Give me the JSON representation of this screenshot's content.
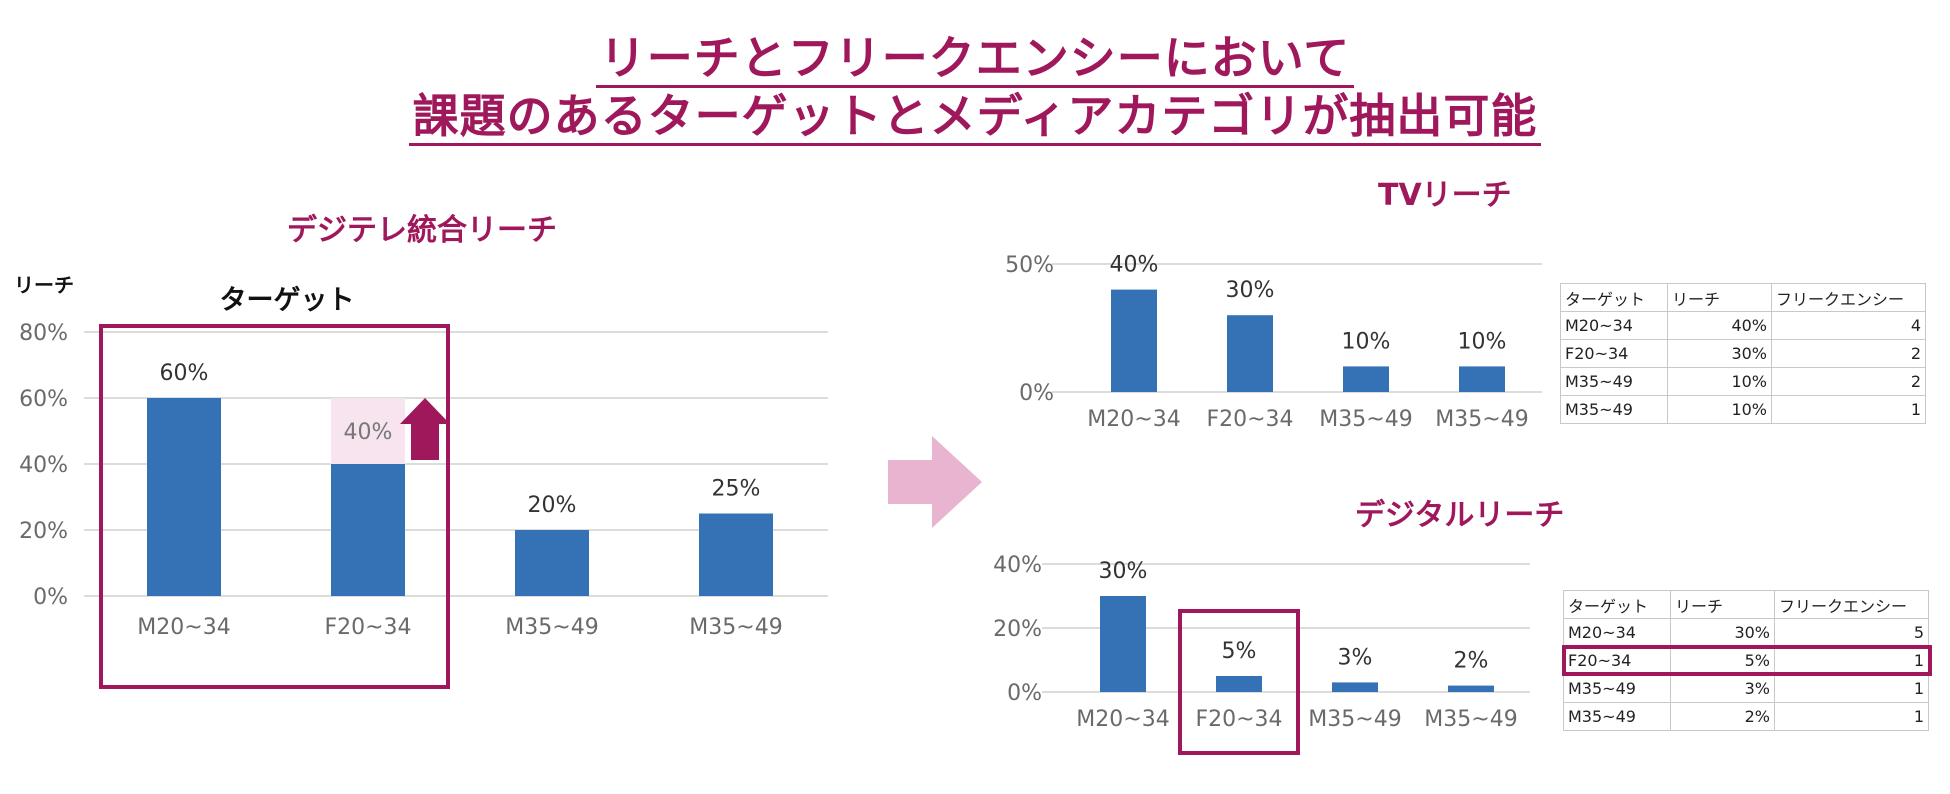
{
  "page": {
    "title_line1": "リーチとフリークエンシーにおいて",
    "title_line2": "課題のあるターゲットとメディアカテゴリが抽出可能",
    "arrow_icon": "right-arrow-icon",
    "accent_color": "#a0185c",
    "bar_color": "#3572b5",
    "arrow_color": "#e8b4cf"
  },
  "chart_data": [
    {
      "id": "integrated",
      "type": "bar",
      "title": "デジテレ統合リーチ",
      "ylabel": "リーチ",
      "highlight_label": "ターゲット",
      "categories": [
        "M20~34",
        "F20~34",
        "M35~49",
        "M35~49"
      ],
      "values": [
        60,
        40,
        20,
        25
      ],
      "value_labels": [
        "60%",
        "",
        "20%",
        "25%"
      ],
      "target_annotation": {
        "category": "F20~34",
        "target_value": 60,
        "label": "40%",
        "icon": "up-arrow-icon"
      },
      "ylim": [
        0,
        80
      ],
      "yticks": [
        0,
        20,
        40,
        60,
        80
      ],
      "ytick_labels": [
        "0%",
        "20%",
        "40%",
        "60%",
        "80%"
      ],
      "grid": true
    },
    {
      "id": "tv",
      "type": "bar",
      "title": "TVリーチ",
      "categories": [
        "M20~34",
        "F20~34",
        "M35~49",
        "M35~49"
      ],
      "values": [
        40,
        30,
        10,
        10
      ],
      "value_labels": [
        "40%",
        "30%",
        "10%",
        "10%"
      ],
      "ylim": [
        0,
        50
      ],
      "yticks": [
        0,
        50
      ],
      "ytick_labels": [
        "0%",
        "50%"
      ],
      "grid": true
    },
    {
      "id": "digital",
      "type": "bar",
      "title": "デジタルリーチ",
      "categories": [
        "M20~34",
        "F20~34",
        "M35~49",
        "M35~49"
      ],
      "values": [
        30,
        5,
        3,
        2
      ],
      "value_labels": [
        "30%",
        "5%",
        "3%",
        "2%"
      ],
      "ylim": [
        0,
        40
      ],
      "yticks": [
        0,
        20,
        40
      ],
      "ytick_labels": [
        "0%",
        "20%",
        "40%"
      ],
      "grid": true
    }
  ],
  "tables": {
    "tv": {
      "headers": [
        "ターゲット",
        "リーチ",
        "フリークエンシー"
      ],
      "rows": [
        [
          "M20~34",
          "40%",
          "4"
        ],
        [
          "F20~34",
          "30%",
          "2"
        ],
        [
          "M35~49",
          "10%",
          "2"
        ],
        [
          "M35~49",
          "10%",
          "1"
        ]
      ]
    },
    "digital": {
      "headers": [
        "ターゲット",
        "リーチ",
        "フリークエンシー"
      ],
      "rows": [
        [
          "F20~34",
          "5%",
          "1"
        ],
        [
          "M35~49",
          "3%",
          "1"
        ],
        [
          "M35~49",
          "2%",
          "1"
        ]
      ],
      "first_row": [
        "M20~34",
        "30%",
        "5"
      ],
      "highlight_row": "F20~34"
    }
  }
}
